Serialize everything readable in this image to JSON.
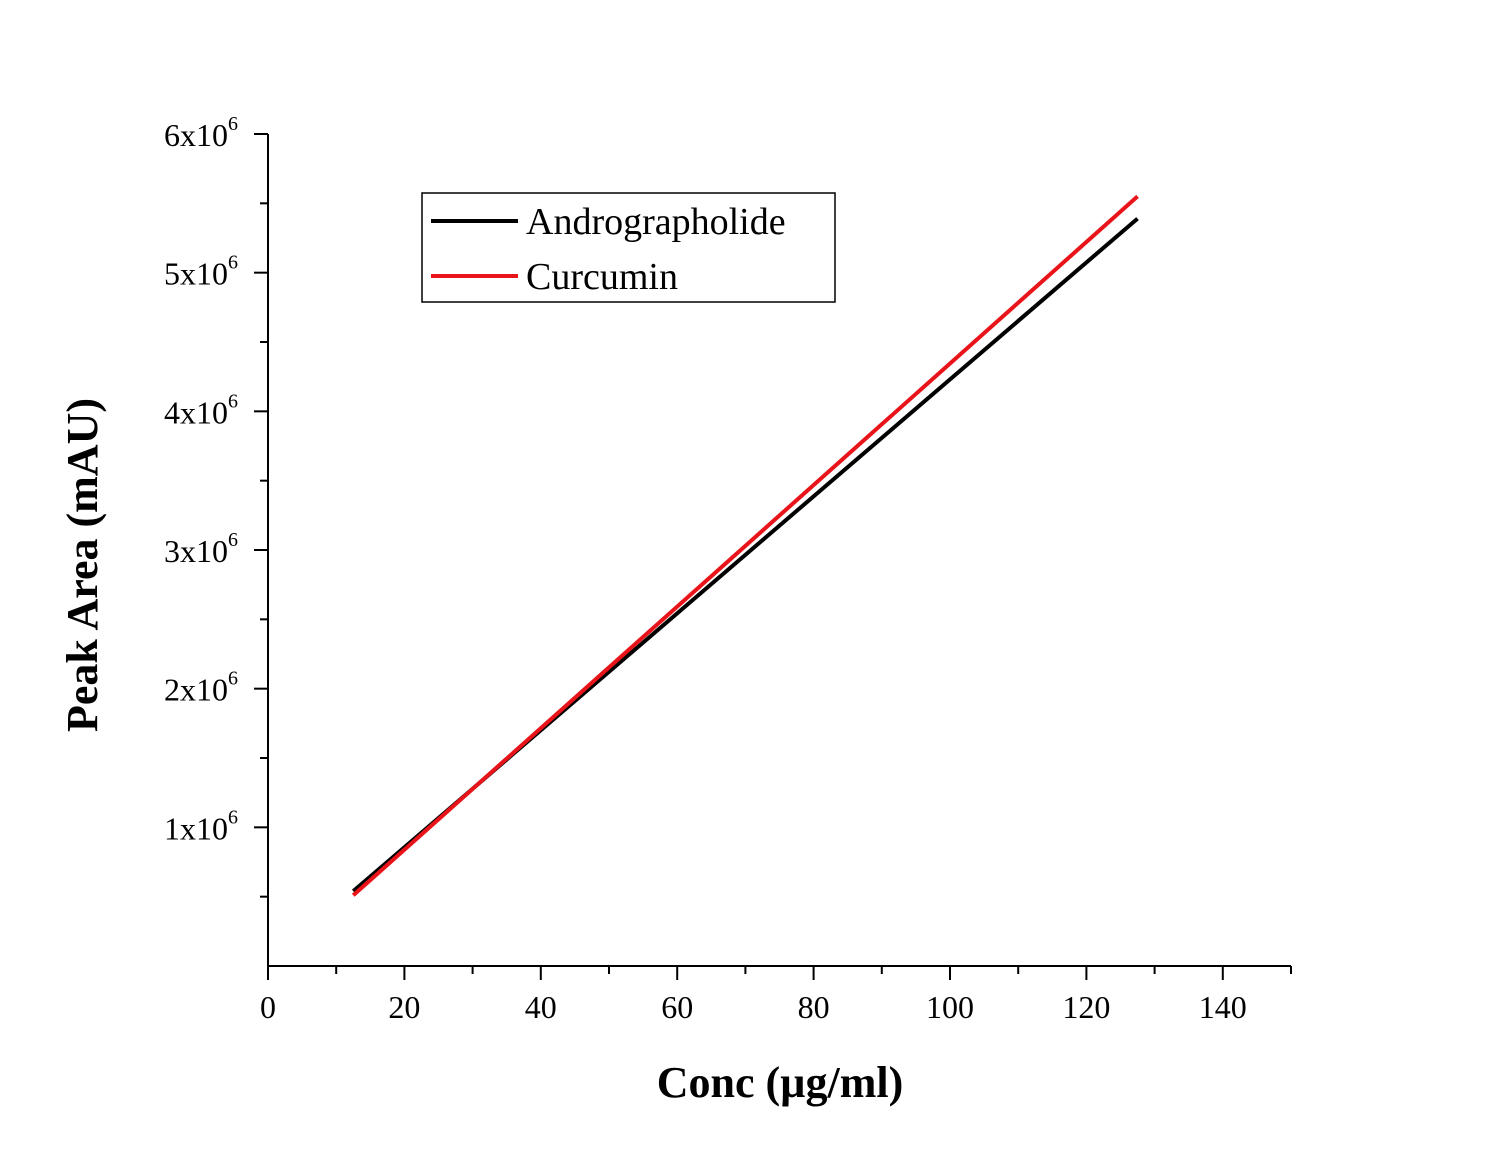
{
  "chart_data": {
    "type": "line",
    "xlabel": "Conc (µg/ml)",
    "ylabel": "Peak Area (mAU)",
    "xlim": [
      0,
      150
    ],
    "ylim": [
      0,
      6000000
    ],
    "x_ticks": [
      0,
      20,
      40,
      60,
      80,
      100,
      120,
      140
    ],
    "x_tick_labels": [
      "0",
      "20",
      "40",
      "60",
      "80",
      "100",
      "120",
      "140"
    ],
    "y_ticks": [
      1000000,
      2000000,
      3000000,
      4000000,
      5000000,
      6000000
    ],
    "y_tick_labels": [
      {
        "base": "1x10",
        "exp": "6"
      },
      {
        "base": "2x10",
        "exp": "6"
      },
      {
        "base": "3x10",
        "exp": "6"
      },
      {
        "base": "4x10",
        "exp": "6"
      },
      {
        "base": "5x10",
        "exp": "6"
      },
      {
        "base": "6x10",
        "exp": "6"
      }
    ],
    "grid": false,
    "legend_position": "top-left",
    "series": [
      {
        "name": "Andrographolide",
        "color": "#000000",
        "x": [
          12.5,
          127.5
        ],
        "y": [
          540000,
          5390000
        ]
      },
      {
        "name": "Curcumin",
        "color": "#e8141a",
        "x": [
          12.5,
          127.5
        ],
        "y": [
          510000,
          5550000
        ]
      }
    ]
  }
}
